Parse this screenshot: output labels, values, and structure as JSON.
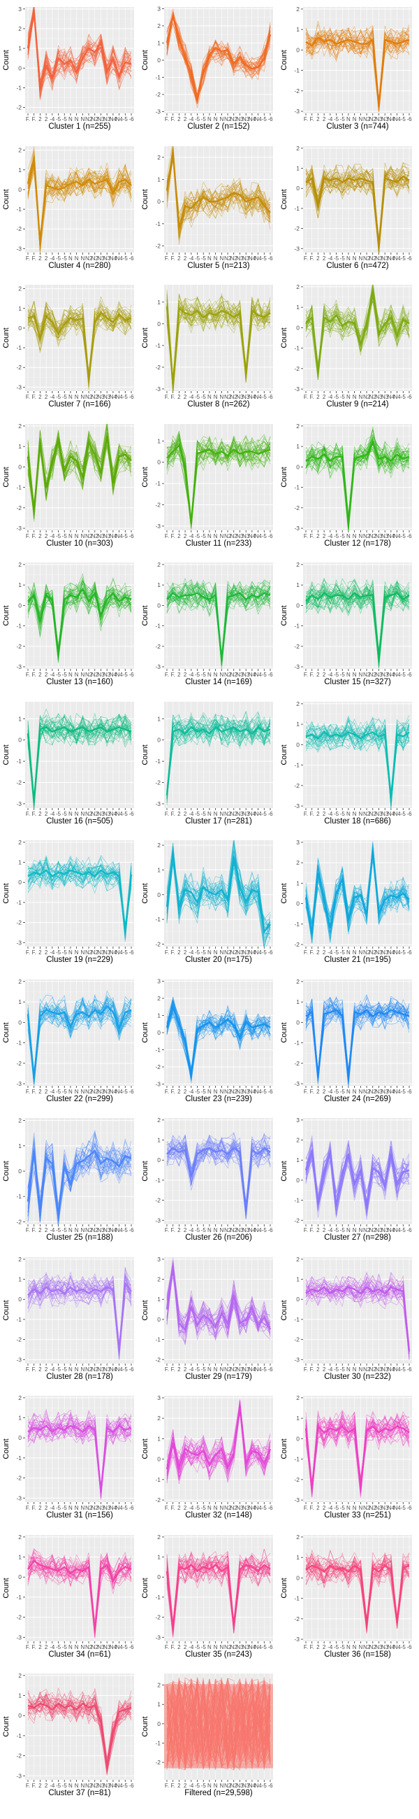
{
  "panel_axis": {
    "ylabel": "Count",
    "xticks": [
      "F.",
      "F.",
      "2",
      "2",
      "-4",
      "-5",
      "-5",
      "N",
      "N",
      "N",
      "N2",
      "N2",
      "N3",
      "N3",
      "N4",
      "N4",
      "-5",
      "-6"
    ]
  },
  "colors": [
    "#F8766D",
    "#E58700",
    "#C99800",
    "#A3A500",
    "#6BB100",
    "#00BA38",
    "#00C08B",
    "#00BCD8",
    "#00B0F6",
    "#619CFF",
    "#B983FF",
    "#E76BF3",
    "#FD61D1",
    "#FF67A4",
    "#F8766D"
  ],
  "chart_data": [
    {
      "type": "line",
      "title": "Cluster 1 (n=255)",
      "ylim": [
        -2.3,
        3.1
      ],
      "yticks": [
        -2,
        -1,
        0,
        1,
        2,
        3
      ],
      "color": "#F2623B",
      "profile": [
        1,
        2.9,
        -1,
        0.1,
        -0.5,
        0.5,
        0.2,
        0.4,
        -0.2,
        0.5,
        1,
        0.8,
        1.3,
        -0.2,
        0.5,
        -0.4,
        0.3,
        0.2
      ]
    },
    {
      "type": "line",
      "title": "Cluster 2 (n=152)",
      "ylim": [
        -3.1,
        3.1
      ],
      "yticks": [
        -3,
        -2,
        -1,
        0,
        1,
        2,
        3
      ],
      "color": "#EF6A23",
      "profile": [
        1,
        2.6,
        1.2,
        0.2,
        -0.8,
        -2.3,
        -0.7,
        0.3,
        0.7,
        0.5,
        0.6,
        -0.2,
        0.2,
        -0.3,
        -0.5,
        -0.4,
        0.1,
        1.5
      ]
    },
    {
      "type": "line",
      "title": "Cluster 3 (n=744)",
      "ylim": [
        -3.1,
        2.1
      ],
      "yticks": [
        -3,
        -2,
        -1,
        0,
        1,
        2
      ],
      "color": "#E07C0A",
      "profile": [
        0.4,
        0.2,
        0.6,
        0.4,
        0.5,
        0.3,
        0.4,
        0.5,
        0.4,
        0.3,
        0.3,
        0.5,
        -2.8,
        0.5,
        0.4,
        0.3,
        0.4,
        0.5
      ]
    },
    {
      "type": "line",
      "title": "Cluster 4 (n=280)",
      "ylim": [
        -3.2,
        2.2
      ],
      "yticks": [
        -3,
        -2,
        -1,
        0,
        1,
        2
      ],
      "color": "#D18A05",
      "profile": [
        0.3,
        1.5,
        -2.7,
        0.2,
        0.1,
        0,
        0.1,
        0.3,
        0.4,
        0.2,
        0.5,
        0.3,
        0.4,
        0.5,
        -0.2,
        0.4,
        0.5,
        0.2
      ]
    },
    {
      "type": "line",
      "title": "Cluster 5 (n=213)",
      "ylim": [
        -2.3,
        2.5
      ],
      "yticks": [
        -2,
        -1,
        0,
        1,
        2
      ],
      "color": "#C68B07",
      "profile": [
        0.5,
        2.2,
        -1.2,
        -0.2,
        -0.3,
        0,
        0.2,
        0,
        0,
        0.1,
        0.2,
        0.4,
        0.3,
        0,
        0.1,
        0.2,
        -0.2,
        -0.5
      ]
    },
    {
      "type": "line",
      "title": "Cluster 6 (n=472)",
      "ylim": [
        -3.2,
        2.1
      ],
      "yticks": [
        -3,
        -2,
        -1,
        0,
        1,
        2
      ],
      "color": "#B68E06",
      "profile": [
        0.3,
        0.5,
        -0.8,
        0.5,
        0.4,
        0.5,
        0.3,
        0.5,
        0.4,
        0.5,
        0.4,
        0.3,
        -2.9,
        0.5,
        0.4,
        0.3,
        0.6,
        0.4
      ]
    },
    {
      "type": "line",
      "title": "Cluster 7 (n=166)",
      "ylim": [
        -3.2,
        2.2
      ],
      "yticks": [
        -3,
        -2,
        -1,
        0,
        1,
        2
      ],
      "color": "#A89C0E",
      "profile": [
        0.5,
        0.6,
        -0.5,
        0.6,
        0.3,
        -0.3,
        0.2,
        0.5,
        0.4,
        0.5,
        -2.6,
        0.3,
        0.8,
        0.5,
        0.3,
        0.7,
        0.4,
        0.5
      ]
    },
    {
      "type": "line",
      "title": "Cluster 8 (n=262)",
      "ylim": [
        -3.1,
        1.8
      ],
      "yticks": [
        -3,
        -2,
        -1,
        0,
        1
      ],
      "color": "#9CA10A",
      "profile": [
        0.8,
        -2.8,
        0.7,
        0.5,
        0.4,
        0.6,
        0.3,
        0.5,
        0.4,
        0.6,
        0.5,
        0.3,
        0.5,
        -2.3,
        0.6,
        0.4,
        0.3,
        0.5
      ]
    },
    {
      "type": "line",
      "title": "Cluster 9 (n=214)",
      "ylim": [
        -3.1,
        2.1
      ],
      "yticks": [
        -3,
        -2,
        -1,
        0,
        1,
        2
      ],
      "color": "#7DAA12",
      "profile": [
        0.2,
        0.5,
        -2.2,
        0.5,
        0.3,
        0.6,
        0.1,
        0.3,
        0.2,
        -0.8,
        0.2,
        1.8,
        -0.3,
        0.2,
        0.5,
        -0.4,
        0.4,
        0.2
      ]
    },
    {
      "type": "line",
      "title": "Cluster 10 (n=303)",
      "ylim": [
        -3.1,
        2.1
      ],
      "yticks": [
        -3,
        -2,
        -1,
        0,
        1,
        2
      ],
      "color": "#5CAA08",
      "profile": [
        0.5,
        -2.2,
        1.2,
        -1,
        0.2,
        1.3,
        -0.2,
        0.5,
        0.3,
        -0.5,
        1.2,
        0.6,
        -0.3,
        1.5,
        -0.8,
        0.5,
        0.6,
        0.3
      ]
    },
    {
      "type": "line",
      "title": "Cluster 11 (n=233)",
      "ylim": [
        -3.2,
        1.8
      ],
      "yticks": [
        -3,
        -2,
        -1,
        0,
        1
      ],
      "color": "#43B10E",
      "profile": [
        0.2,
        0.5,
        0.8,
        -0.3,
        -2.9,
        0.4,
        0.5,
        0.6,
        0.4,
        0.5,
        0.3,
        0.6,
        0.4,
        0.5,
        0.5,
        0.4,
        0.5,
        0.6
      ]
    },
    {
      "type": "line",
      "title": "Cluster 12 (n=178)",
      "ylim": [
        -3.1,
        2.1
      ],
      "yticks": [
        -3,
        -2,
        -1,
        0,
        1,
        2
      ],
      "color": "#2DB616",
      "profile": [
        0.3,
        0.5,
        0.4,
        0.6,
        0.3,
        0.5,
        0.5,
        -2.8,
        0.4,
        0.5,
        0.6,
        1.2,
        0.4,
        0.5,
        0.3,
        0.6,
        0.4,
        0.5
      ]
    },
    {
      "type": "line",
      "title": "Cluster 13 (n=160)",
      "ylim": [
        -3.1,
        2.1
      ],
      "yticks": [
        -3,
        -2,
        -1,
        0,
        1,
        2
      ],
      "color": "#25B526",
      "profile": [
        0.2,
        0.5,
        -0.8,
        0.5,
        0.3,
        -2.4,
        0.3,
        0.5,
        0.4,
        0.8,
        0.2,
        0.6,
        -0.5,
        0.3,
        0.6,
        0.2,
        0.4,
        0.3
      ]
    },
    {
      "type": "line",
      "title": "Cluster 14 (n=169)",
      "ylim": [
        -3.1,
        2.1
      ],
      "yticks": [
        -3,
        -2,
        -1,
        0,
        1,
        2
      ],
      "color": "#1DB838",
      "profile": [
        0.3,
        0.6,
        0.4,
        0.5,
        0.5,
        0.6,
        0.4,
        0.3,
        0.5,
        -2.7,
        0.4,
        0.5,
        0.6,
        0.3,
        0.5,
        0.4,
        0.6,
        0.5
      ]
    },
    {
      "type": "line",
      "title": "Cluster 15 (n=327)",
      "ylim": [
        -3.1,
        2.1
      ],
      "yticks": [
        -3,
        -2,
        -1,
        0,
        1,
        2
      ],
      "color": "#10BA60",
      "profile": [
        0.2,
        0.5,
        0.3,
        0.6,
        0.4,
        0.5,
        0.5,
        0.3,
        0.6,
        0.4,
        0.5,
        0.5,
        -2.6,
        0.4,
        0.5,
        0.6,
        0.3,
        0.5
      ]
    },
    {
      "type": "line",
      "title": "Cluster 16 (n=505)",
      "ylim": [
        -3.2,
        1.8
      ],
      "yticks": [
        -3,
        -2,
        -1,
        0,
        1
      ],
      "color": "#0CBA80",
      "profile": [
        0.3,
        -2.9,
        0.5,
        0.6,
        0.4,
        0.5,
        0.6,
        0.4,
        0.5,
        0.6,
        0.4,
        0.5,
        0.6,
        0.4,
        0.5,
        0.6,
        0.5,
        0.4
      ]
    },
    {
      "type": "line",
      "title": "Cluster 17 (n=281)",
      "ylim": [
        -3.2,
        1.8
      ],
      "yticks": [
        -3,
        -2,
        -1,
        0,
        1
      ],
      "color": "#0BBC9A",
      "profile": [
        -2.6,
        0.4,
        0.5,
        0.3,
        0.6,
        0.4,
        0.5,
        0.3,
        0.6,
        0.4,
        0.5,
        0.6,
        0.4,
        0.5,
        0.3,
        0.6,
        0.4,
        0.5
      ]
    },
    {
      "type": "line",
      "title": "Cluster 18 (n=686)",
      "ylim": [
        -3.1,
        2.1
      ],
      "yticks": [
        -3,
        -2,
        -1,
        0,
        1,
        2
      ],
      "color": "#0BBDB2",
      "profile": [
        0.4,
        0.5,
        0.3,
        0.6,
        0.4,
        0.5,
        0.4,
        0.6,
        0.5,
        0.3,
        0.5,
        0.6,
        0.4,
        0.5,
        -2.7,
        0.5,
        0.4,
        0.6
      ]
    },
    {
      "type": "line",
      "title": "Cluster 19 (n=229)",
      "ylim": [
        -3.2,
        2.1
      ],
      "yticks": [
        -3,
        -2,
        -1,
        0,
        1,
        2
      ],
      "color": "#0EB8C6",
      "profile": [
        0.3,
        0.5,
        0.4,
        0.6,
        0.3,
        0.5,
        0.4,
        0.6,
        0.5,
        0.4,
        0.5,
        0.3,
        0.6,
        0.4,
        0.5,
        0.3,
        -2.5,
        0.4
      ]
    },
    {
      "type": "line",
      "title": "Cluster 20 (n=175)",
      "ylim": [
        -2.1,
        2.2
      ],
      "yticks": [
        -2,
        -1,
        0,
        1,
        2
      ],
      "color": "#0FB2D0",
      "profile": [
        -0.5,
        1.7,
        -0.5,
        0.2,
        0.1,
        -0.3,
        0.3,
        0.1,
        0,
        0.2,
        -0.2,
        1.5,
        0.3,
        -0.3,
        0.2,
        0.1,
        -1.5,
        -1.2
      ]
    },
    {
      "type": "line",
      "title": "Cluster 21 (n=195)",
      "ylim": [
        -2.1,
        3.1
      ],
      "yticks": [
        -2,
        -1,
        0,
        1,
        2,
        3
      ],
      "color": "#0DA8DB",
      "profile": [
        0.3,
        -1.5,
        1.5,
        0.2,
        -1.2,
        0.5,
        1.2,
        -0.8,
        0.3,
        0.4,
        -0.5,
        2.6,
        -0.5,
        0.2,
        0.4,
        0.3,
        0.5,
        0.2
      ]
    },
    {
      "type": "line",
      "title": "Cluster 22 (n=299)",
      "ylim": [
        -3.1,
        2.1
      ],
      "yticks": [
        -3,
        -2,
        -1,
        0,
        1,
        2
      ],
      "color": "#16A0E6",
      "profile": [
        0.4,
        -2.8,
        0.3,
        0.6,
        0.5,
        0.4,
        0.5,
        -0.2,
        0.4,
        0.5,
        0.3,
        0.6,
        0.4,
        0.8,
        0.5,
        -0.3,
        0.5,
        0.6
      ]
    },
    {
      "type": "line",
      "title": "Cluster 23 (n=239)",
      "ylim": [
        -3.1,
        3.1
      ],
      "yticks": [
        -3,
        -2,
        -1,
        0,
        1,
        2,
        3
      ],
      "color": "#1593EE",
      "profile": [
        0.3,
        1.5,
        0.5,
        -0.5,
        -2.5,
        0.2,
        0.4,
        0.6,
        0.3,
        0.5,
        0.8,
        0.4,
        -0.3,
        0.6,
        0.3,
        0.4,
        0.5,
        0.3
      ]
    },
    {
      "type": "line",
      "title": "Cluster 24 (n=269)",
      "ylim": [
        -3.1,
        2.1
      ],
      "yticks": [
        -3,
        -2,
        -1,
        0,
        1,
        2
      ],
      "color": "#1E88F5",
      "profile": [
        0.3,
        0.5,
        -2.7,
        0.4,
        0.5,
        0.6,
        0.3,
        -2.8,
        0.5,
        0.4,
        0.6,
        0.3,
        0.5,
        0.4,
        0.6,
        0.5,
        0.4,
        0.3
      ]
    },
    {
      "type": "line",
      "title": "Cluster 25 (n=188)",
      "ylim": [
        -2.1,
        2.1
      ],
      "yticks": [
        -2,
        -1,
        0,
        1,
        2
      ],
      "color": "#4A85FA",
      "profile": [
        -1.2,
        0.8,
        -1.5,
        0.5,
        0.3,
        -1.8,
        0.2,
        -0.5,
        0.3,
        0.4,
        0.6,
        0.8,
        0.3,
        0.5,
        0.4,
        0.2,
        0.6,
        0.5
      ]
    },
    {
      "type": "line",
      "title": "Cluster 26 (n=206)",
      "ylim": [
        -3.2,
        2.1
      ],
      "yticks": [
        -3,
        -2,
        -1,
        0,
        1,
        2
      ],
      "color": "#6C7EFB",
      "profile": [
        0.3,
        0.6,
        0.4,
        0.5,
        -0.8,
        0.3,
        0.5,
        0.6,
        0.4,
        0.5,
        0.3,
        0.6,
        0.4,
        -2.6,
        0.5,
        0.3,
        0.6,
        0.4
      ]
    },
    {
      "type": "line",
      "title": "Cluster 27 (n=298)",
      "ylim": [
        -2.2,
        3.1
      ],
      "yticks": [
        -2,
        -1,
        0,
        1,
        2,
        3
      ],
      "color": "#8C78FB",
      "profile": [
        0.5,
        1.5,
        -1.2,
        0.4,
        1.4,
        -1.3,
        0.3,
        1.3,
        -0.2,
        0.5,
        -1.2,
        0.6,
        0.4,
        -0.3,
        1.3,
        -0.2,
        0.4,
        0.5
      ]
    },
    {
      "type": "line",
      "title": "Cluster 28 (n=178)",
      "ylim": [
        -3.2,
        2.1
      ],
      "yticks": [
        -3,
        -2,
        -1,
        0,
        1,
        2
      ],
      "color": "#A873F5",
      "profile": [
        0.2,
        0.5,
        0.3,
        0.6,
        0.4,
        0.5,
        0.3,
        0.6,
        0.4,
        0.5,
        0.3,
        0.5,
        0.4,
        0.6,
        0.5,
        -2.6,
        0.8,
        0.4
      ]
    },
    {
      "type": "line",
      "title": "Cluster 29 (n=179)",
      "ylim": [
        -2.2,
        3.1
      ],
      "yticks": [
        -2,
        -1,
        0,
        1,
        2,
        3
      ],
      "color": "#B467F0",
      "profile": [
        0.5,
        2.6,
        -0.2,
        -0.5,
        0.6,
        -0.3,
        0.2,
        0,
        -0.4,
        0.3,
        -0.2,
        1.2,
        -0.2,
        0,
        0.6,
        -0.3,
        0.1,
        -0.5
      ]
    },
    {
      "type": "line",
      "title": "Cluster 30 (n=232)",
      "ylim": [
        -3.2,
        2.1
      ],
      "yticks": [
        -3,
        -2,
        -1,
        0,
        1,
        2
      ],
      "color": "#C05AEC",
      "profile": [
        0.3,
        0.5,
        0.4,
        0.6,
        0.3,
        0.5,
        0.4,
        0.6,
        0.5,
        0.3,
        0.6,
        0.4,
        0.5,
        0.3,
        0.6,
        0.5,
        0.4,
        -2.6
      ]
    },
    {
      "type": "line",
      "title": "Cluster 31 (n=156)",
      "ylim": [
        -3.2,
        2.1
      ],
      "yticks": [
        -3,
        -2,
        -1,
        0,
        1,
        2
      ],
      "color": "#D84FE0",
      "profile": [
        0.3,
        0.5,
        0.4,
        0.6,
        0.3,
        0.5,
        0.4,
        0.6,
        0.5,
        0.3,
        0.6,
        0.4,
        -2.7,
        0.5,
        0.3,
        0.6,
        0.4,
        0.5
      ]
    },
    {
      "type": "line",
      "title": "Cluster 32 (n=148)",
      "ylim": [
        -2.1,
        3.1
      ],
      "yticks": [
        -2,
        -1,
        0,
        1,
        2,
        3
      ],
      "color": "#E348D6",
      "profile": [
        -0.5,
        0.8,
        -0.4,
        0.5,
        0.3,
        0.2,
        0.4,
        -0.3,
        0.2,
        0.5,
        -0.4,
        0.3,
        2.6,
        -0.2,
        0.4,
        0.3,
        -0.2,
        0.5
      ]
    },
    {
      "type": "line",
      "title": "Cluster 33 (n=251)",
      "ylim": [
        -3.1,
        2.1
      ],
      "yticks": [
        -3,
        -2,
        -1,
        0,
        1,
        2
      ],
      "color": "#EE3FC3",
      "profile": [
        0.5,
        -2.5,
        0.6,
        0.3,
        0.5,
        0.4,
        0.6,
        0.3,
        0.5,
        -2.4,
        0.4,
        0.6,
        0.3,
        0.5,
        0.4,
        0.6,
        0.5,
        0.3
      ]
    },
    {
      "type": "line",
      "title": "Cluster 34 (n=61)",
      "ylim": [
        -3.2,
        2.1
      ],
      "yticks": [
        -3,
        -2,
        -1,
        0,
        1,
        2
      ],
      "color": "#F340A6",
      "profile": [
        0.4,
        0.8,
        0.6,
        0.5,
        0.4,
        0.3,
        0.5,
        0.2,
        0.4,
        0.3,
        0.5,
        -2.7,
        0.4,
        0.6,
        -0.2,
        0.3,
        0.5,
        0.4
      ]
    },
    {
      "type": "line",
      "title": "Cluster 35 (n=243)",
      "ylim": [
        -3.2,
        2.1
      ],
      "yticks": [
        -3,
        -2,
        -1,
        0,
        1,
        2
      ],
      "color": "#F5408D",
      "profile": [
        0.3,
        -2.6,
        0.5,
        0.4,
        0.6,
        0.3,
        0.5,
        0.4,
        0.6,
        0.3,
        0.5,
        -2.5,
        0.4,
        0.6,
        0.5,
        0.3,
        0.6,
        0.4
      ]
    },
    {
      "type": "line",
      "title": "Cluster 36 (n=158)",
      "ylim": [
        -3.1,
        2.1
      ],
      "yticks": [
        -3,
        -2,
        -1,
        0,
        1,
        2
      ],
      "color": "#F5437A",
      "profile": [
        0.4,
        0.6,
        0.5,
        0.3,
        0.6,
        0.4,
        0.5,
        0.3,
        0.6,
        0.4,
        -2.3,
        0.5,
        0.3,
        0.6,
        0.4,
        -2.2,
        0.5,
        0.6
      ]
    },
    {
      "type": "line",
      "title": "Cluster 37 (n=81)",
      "ylim": [
        -3.2,
        2.1
      ],
      "yticks": [
        -3,
        -2,
        -1,
        0,
        1,
        2
      ],
      "color": "#EE4A6F",
      "profile": [
        0.5,
        0.4,
        0.6,
        0.5,
        0.3,
        0.6,
        0.4,
        0.5,
        0.3,
        0.6,
        0.4,
        0.5,
        -0.3,
        -2.6,
        -0.8,
        0.2,
        0.3,
        0.4
      ]
    },
    {
      "type": "line",
      "title": "Filtered (n=29,598)",
      "ylim": [
        -2.9,
        2.6
      ],
      "yticks": [
        -2,
        -1,
        0,
        1,
        2
      ],
      "color": "#F8766D",
      "profile": [
        0,
        0,
        0,
        0,
        0,
        0,
        0,
        0,
        0,
        0,
        0,
        0,
        0,
        0,
        0,
        0,
        0,
        0
      ]
    }
  ]
}
